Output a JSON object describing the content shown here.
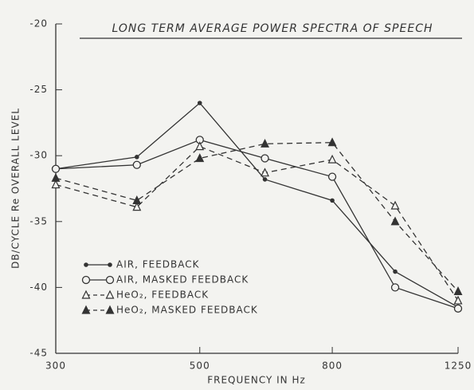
{
  "chart_data": {
    "type": "line",
    "title": "LONG TERM AVERAGE POWER SPECTRA OF SPEECH",
    "xlabel": "FREQUENCY IN Hz",
    "ylabel": "DB/CYCLE Re OVERALL LEVEL",
    "x": [
      300,
      400,
      500,
      630,
      800,
      1000,
      1250
    ],
    "xscale": "log",
    "xlim": [
      300,
      1250
    ],
    "xticks": [
      300,
      500,
      800,
      1250
    ],
    "ylim": [
      -45,
      -20
    ],
    "yticks": [
      -20,
      -25,
      -30,
      -35,
      -40,
      -45
    ],
    "legend": "lower left",
    "series": [
      {
        "name": "AIR, FEEDBACK",
        "color": "#333333",
        "marker": "dot",
        "dashed": false,
        "values": [
          -31,
          -30.1,
          -26,
          -31.8,
          -33.4,
          -38.8,
          -41.5
        ]
      },
      {
        "name": "AIR, MASKED FEEDBACK",
        "color": "#333333",
        "marker": "circle",
        "dashed": false,
        "values": [
          -31,
          -30.7,
          -28.8,
          -30.2,
          -31.6,
          -40,
          -41.6
        ]
      },
      {
        "name": "HeO₂, FEEDBACK",
        "color": "#333333",
        "marker": "open-triangle",
        "dashed": true,
        "values": [
          -32.2,
          -33.9,
          -29.3,
          -31.3,
          -30.3,
          -33.8,
          -41
        ]
      },
      {
        "name": "HeO₂, MASKED FEEDBACK",
        "color": "#333333",
        "marker": "triangle",
        "dashed": true,
        "values": [
          -31.7,
          -33.4,
          -30.2,
          -29.1,
          -29,
          -35,
          -40.3
        ]
      }
    ]
  }
}
